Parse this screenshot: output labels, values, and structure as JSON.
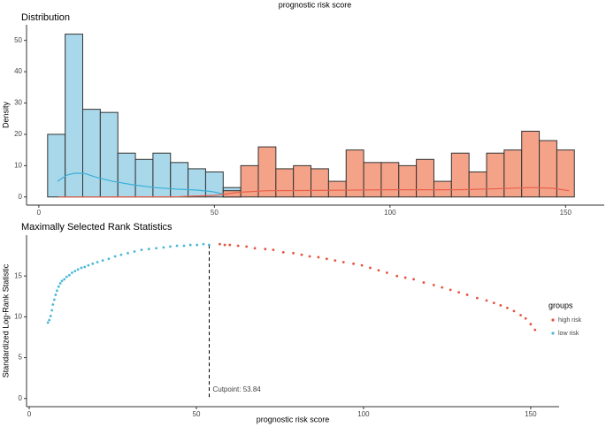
{
  "chart_data": [
    {
      "type": "histogram",
      "title": "Distribution",
      "xlabel": "prognostic risk score",
      "ylabel": "Density",
      "bins": [
        2.5,
        7.5,
        12.5,
        17.5,
        22.5,
        27.5,
        32.5,
        37.5,
        42.5,
        47.5,
        52.5,
        57.5,
        62.5,
        67.5,
        72.5,
        77.5,
        82.5,
        87.5,
        92.5,
        97.5,
        102.5,
        107.5,
        112.5,
        117.5,
        122.5,
        127.5,
        132.5,
        137.5,
        142.5,
        147.5,
        152.5
      ],
      "series": [
        {
          "color": "#a8d8ea",
          "values": [
            20,
            52,
            28,
            27,
            14,
            12,
            14,
            11,
            9,
            8,
            3,
            0,
            0,
            0,
            0,
            0,
            0,
            0,
            0,
            0,
            0,
            0,
            0,
            0,
            0,
            0,
            0,
            0,
            0,
            0
          ]
        },
        {
          "color": "#f4a388",
          "values": [
            0,
            0,
            0,
            0,
            0,
            0,
            0,
            0,
            0,
            0,
            2,
            10,
            16,
            9,
            10,
            9,
            5,
            15,
            11,
            11,
            10,
            12,
            5,
            14,
            8,
            14,
            15,
            21,
            18,
            15
          ]
        }
      ],
      "lines": [
        {
          "color": "#3ab0d8",
          "x": [
            5.3,
            8,
            10.3,
            13,
            16.6,
            21,
            26.7,
            33,
            39.3,
            45,
            49.4,
            53.1
          ],
          "values": [
            5,
            7,
            7.6,
            7.5,
            6.2,
            5,
            3.9,
            3,
            2.5,
            2.2,
            1.7,
            0.8
          ]
        },
        {
          "color": "#e8604c",
          "x": [
            5.5,
            20,
            40,
            50,
            57,
            65,
            80,
            100,
            120,
            130,
            140,
            146,
            151
          ],
          "values": [
            0,
            0,
            0.1,
            0.5,
            1.5,
            2,
            2.1,
            2.3,
            2.3,
            2.6,
            3,
            2.8,
            2
          ]
        }
      ],
      "xlim": [
        -3.5,
        161
      ],
      "xticks": [
        0,
        50,
        100,
        150
      ],
      "ylim": [
        -2.6,
        55
      ],
      "yticks": [
        0,
        10,
        20,
        30,
        40,
        50
      ]
    },
    {
      "type": "scatter",
      "title": "Maximally Selected Rank Statistics",
      "xlabel": "prognostic risk score",
      "ylabel": "Standardized Log-Rank Statistic",
      "legend_title": "groups",
      "legend": "right",
      "cutpoint": 53.84,
      "annotation": "Cutpoint: 53.84",
      "series": [
        {
          "name": "high risk",
          "color": "#e4543f",
          "x": [
            57,
            58.5,
            60,
            62.5,
            65,
            67.5,
            70.6,
            73,
            76,
            79,
            81.5,
            83.9,
            86.5,
            89,
            91.5,
            94,
            97,
            99.5,
            102,
            104.5,
            107,
            110,
            112.5,
            115,
            118,
            121,
            123.5,
            126,
            128.5,
            131,
            134,
            136.8,
            139,
            141,
            143,
            145,
            147,
            148.5,
            150,
            151.3
          ],
          "values": [
            18.9,
            18.8,
            18.8,
            18.7,
            18.6,
            18.4,
            18.3,
            18.2,
            17.9,
            17.8,
            17.6,
            17.4,
            17.3,
            17.1,
            16.9,
            16.7,
            16.5,
            16.3,
            16,
            15.7,
            15.4,
            15,
            14.8,
            14.6,
            14.2,
            13.9,
            13.6,
            13.3,
            13,
            12.7,
            12.3,
            12,
            11.7,
            11.4,
            11.1,
            10.7,
            10.2,
            9.8,
            9.1,
            8.4
          ]
        },
        {
          "name": "low risk",
          "color": "#4db8d8",
          "x": [
            5.6,
            6,
            6.4,
            6.8,
            7.1,
            7.5,
            7.9,
            8.3,
            8.8,
            9.3,
            9.8,
            10.5,
            11.2,
            12,
            12.8,
            13.7,
            14.6,
            15.6,
            16.6,
            17.7,
            19,
            20.4,
            22,
            23.8,
            25.7,
            27.5,
            29.5,
            31.5,
            33.6,
            35.8,
            38,
            40.2,
            42.2,
            44.2,
            46.3,
            48.2,
            50.2,
            52.1,
            53.8
          ],
          "values": [
            9.3,
            9.6,
            10.1,
            10.8,
            11.5,
            12.1,
            12.7,
            13.2,
            13.7,
            14.1,
            14.4,
            14.6,
            14.9,
            15.1,
            15.4,
            15.6,
            15.8,
            16,
            16.1,
            16.3,
            16.5,
            16.7,
            16.9,
            17.1,
            17.4,
            17.6,
            17.8,
            18,
            18.2,
            18.3,
            18.4,
            18.5,
            18.6,
            18.7,
            18.7,
            18.8,
            18.8,
            18.9,
            18.8
          ]
        }
      ],
      "xlim": [
        -0.8,
        158.5
      ],
      "xticks": [
        0,
        50,
        100,
        150
      ],
      "ylim": [
        -1,
        20
      ],
      "yticks": [
        0,
        5,
        10,
        15
      ]
    }
  ]
}
